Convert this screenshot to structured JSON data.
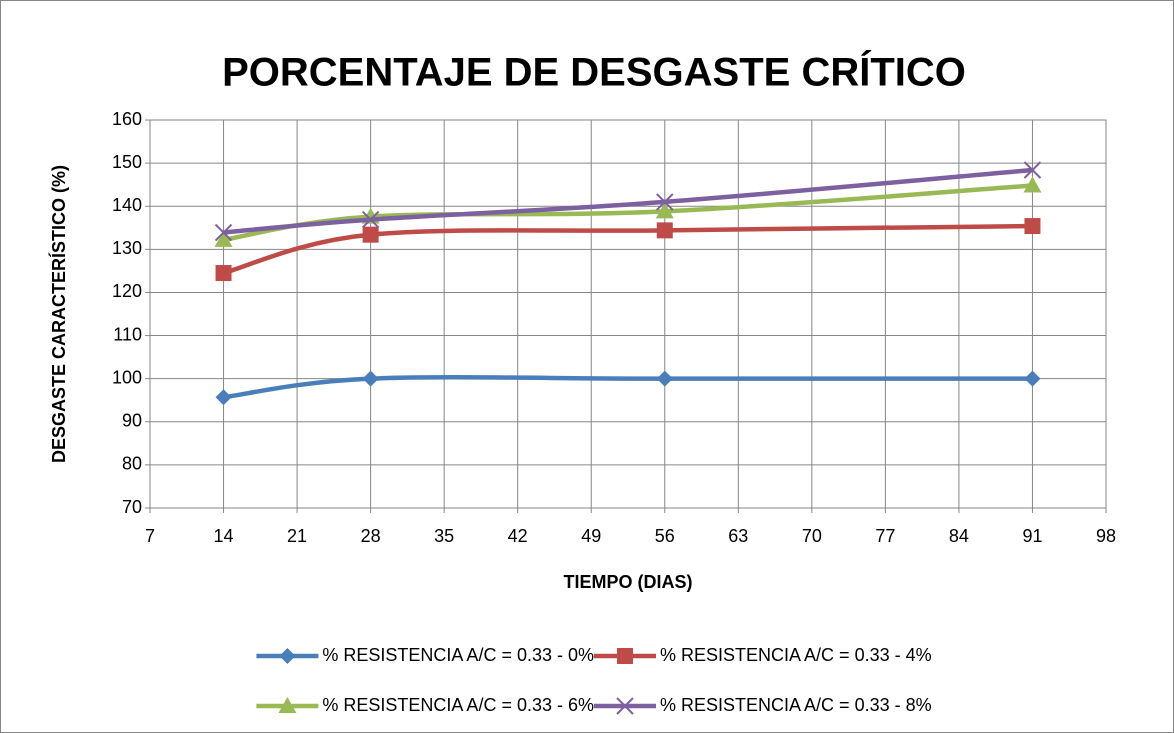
{
  "chart_data": {
    "type": "line",
    "title": "PORCENTAJE DE DESGASTE CRÍTICO",
    "x_label": "TIEMPO (DIAS)",
    "y_label": "DESGASTE CARACTERÍSTICO (%)",
    "x": [
      14,
      28,
      56,
      91
    ],
    "series": [
      {
        "name": "% RESISTENCIA A/C = 0.33 - 0%",
        "color": "#4a7ebb",
        "marker": "diamond",
        "values": [
          95.7,
          100,
          100,
          100
        ]
      },
      {
        "name": "% RESISTENCIA A/C = 0.33 - 4%",
        "color": "#be4b48",
        "marker": "square",
        "values": [
          124.5,
          133.4,
          134.4,
          135.4
        ]
      },
      {
        "name": "% RESISTENCIA A/C = 0.33 - 6%",
        "color": "#98b954",
        "marker": "triangle",
        "values": [
          132.2,
          137.6,
          138.8,
          144.8
        ]
      },
      {
        "name": "% RESISTENCIA A/C = 0.33 - 8%",
        "color": "#7d60a0",
        "marker": "x",
        "values": [
          133.9,
          136.9,
          141,
          148.4
        ]
      }
    ],
    "xlim": [
      7,
      98
    ],
    "xticks": [
      7,
      14,
      21,
      28,
      35,
      42,
      49,
      56,
      63,
      70,
      77,
      84,
      91,
      98
    ],
    "ylim": [
      70,
      160
    ],
    "yticks": [
      70,
      80,
      90,
      100,
      110,
      120,
      130,
      140,
      150,
      160
    ],
    "grid": true,
    "smooth": true,
    "legend": "bottom"
  }
}
